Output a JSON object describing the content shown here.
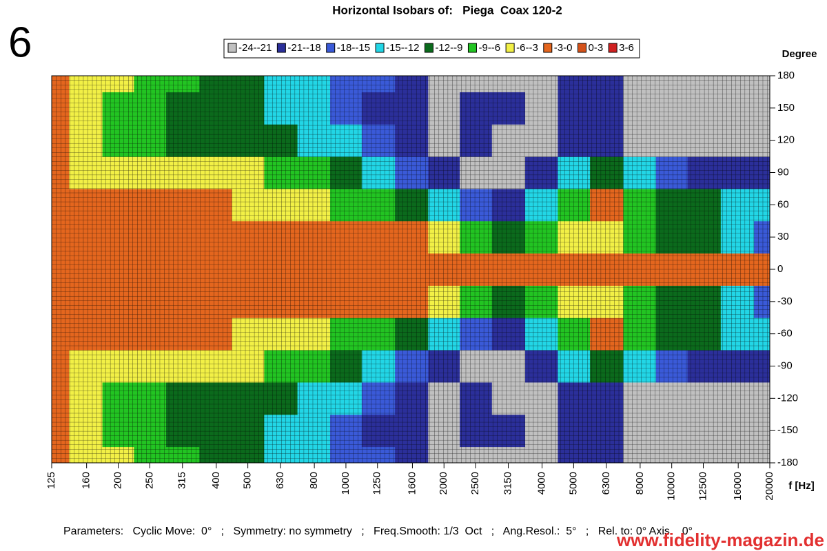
{
  "corner_label": "6",
  "chart_data": {
    "type": "contour",
    "title": "Horizontal Isobars of:   Piega  Coax 120-2",
    "x_label": "f [Hz]",
    "y_label": "Degree",
    "x_scale": "log",
    "grid": true,
    "x": [
      125,
      160,
      200,
      250,
      315,
      400,
      500,
      630,
      800,
      1000,
      1250,
      1600,
      2000,
      2500,
      3150,
      4000,
      5000,
      6300,
      8000,
      10000,
      12500,
      16000,
      20000
    ],
    "xlim": [
      125,
      20000
    ],
    "y": [
      -180,
      -150,
      -120,
      -90,
      -60,
      -30,
      0,
      30,
      60,
      90,
      120,
      150,
      180
    ],
    "ylim": [
      -180,
      180
    ],
    "levels": [
      {
        "label": "-24--21",
        "min": -24,
        "max": -21,
        "color": "#c0c0c0"
      },
      {
        "label": "-21--18",
        "min": -21,
        "max": -18,
        "color": "#2b2f9a"
      },
      {
        "label": "-18--15",
        "min": -18,
        "max": -15,
        "color": "#3a5ad8"
      },
      {
        "label": "-15--12",
        "min": -15,
        "max": -12,
        "color": "#22d6e6"
      },
      {
        "label": "-12--9",
        "min": -12,
        "max": -9,
        "color": "#0b6a1c"
      },
      {
        "label": "-9--6",
        "min": -9,
        "max": -6,
        "color": "#22c422"
      },
      {
        "label": "-6--3",
        "min": -6,
        "max": -3,
        "color": "#f2f046"
      },
      {
        "label": "-3-0",
        "min": -3,
        "max": 0,
        "color": "#e4661e"
      },
      {
        "label": "0-3",
        "min": 0,
        "max": 3,
        "color": "#d4521a"
      },
      {
        "label": "3-6",
        "min": 3,
        "max": 6,
        "color": "#d02020"
      }
    ],
    "z": [
      [
        -1,
        -4,
        -5,
        -7,
        -8,
        -10,
        -11,
        -14,
        -15,
        -17,
        -18,
        -19,
        -22,
        -22,
        -22,
        -22,
        -20,
        -21,
        -22,
        -22,
        -22,
        -22,
        -22
      ],
      [
        -1,
        -4,
        -7,
        -8,
        -10,
        -11,
        -11,
        -13,
        -15,
        -17,
        -19,
        -20,
        -22,
        -20,
        -20,
        -22,
        -19,
        -20,
        -22,
        -22,
        -22,
        -22,
        -22
      ],
      [
        -1,
        -4,
        -6.5,
        -8,
        -10,
        -10,
        -10,
        -11,
        -13,
        -15,
        -18,
        -20,
        -22,
        -20,
        -22,
        -22,
        -20,
        -19,
        -22,
        -22,
        -22,
        -22,
        -22
      ],
      [
        -1,
        -3.5,
        -4,
        -5,
        -5,
        -5,
        -6,
        -7,
        -8,
        -10,
        -13,
        -16,
        -20,
        -22,
        -22,
        -19,
        -14,
        -11,
        -13,
        -16,
        -19,
        -20,
        -20
      ],
      [
        -1,
        -2,
        -2,
        -2,
        -2,
        -2,
        -3.5,
        -4,
        -5,
        -7,
        -8,
        -10,
        -13,
        -17,
        -20,
        -13,
        -7,
        -2,
        -8,
        -11,
        -12,
        -13,
        -15
      ],
      [
        -1,
        -1,
        -1,
        -1,
        -1,
        -1,
        -1,
        -1,
        -1,
        -1,
        -1,
        -2,
        -4,
        -7,
        -10,
        -8,
        -5,
        -4,
        -8,
        -10,
        -12,
        -14,
        -17
      ],
      [
        -1,
        -1,
        -1,
        -1,
        -1,
        -1,
        -1,
        -1,
        -1,
        -1,
        -1,
        -1,
        -1,
        -1,
        -1,
        -1,
        -1,
        -1,
        -1,
        -1,
        -1,
        -1,
        -1
      ],
      [
        -1,
        -1,
        -1,
        -1,
        -1,
        -1,
        -1,
        -1,
        -1,
        -1,
        -1,
        -2,
        -4,
        -7,
        -10,
        -8,
        -5,
        -4,
        -8,
        -10,
        -12,
        -14,
        -17
      ],
      [
        -1,
        -2,
        -2,
        -2,
        -2,
        -2,
        -3.5,
        -4,
        -5,
        -7,
        -8,
        -10,
        -13,
        -17,
        -20,
        -13,
        -7,
        -2,
        -8,
        -11,
        -12,
        -13,
        -15
      ],
      [
        -1,
        -3.5,
        -4,
        -5,
        -5,
        -5,
        -6,
        -7,
        -8,
        -10,
        -13,
        -16,
        -20,
        -22,
        -22,
        -19,
        -14,
        -11,
        -13,
        -16,
        -19,
        -20,
        -20
      ],
      [
        -1,
        -4,
        -6.5,
        -8,
        -10,
        -10,
        -10,
        -11,
        -13,
        -15,
        -18,
        -20,
        -22,
        -20,
        -22,
        -22,
        -20,
        -19,
        -22,
        -22,
        -22,
        -22,
        -22
      ],
      [
        -1,
        -4,
        -7,
        -8,
        -10,
        -11,
        -11,
        -13,
        -15,
        -17,
        -19,
        -20,
        -22,
        -20,
        -20,
        -22,
        -19,
        -20,
        -22,
        -22,
        -22,
        -22,
        -22
      ],
      [
        -1,
        -4,
        -5,
        -7,
        -8,
        -10,
        -11,
        -14,
        -15,
        -17,
        -18,
        -19,
        -22,
        -22,
        -22,
        -22,
        -20,
        -21,
        -22,
        -22,
        -22,
        -22,
        -22
      ]
    ],
    "footer": "Parameters:   Cyclic Move:  0°   ;   Symmetry: no symmetry   ;   Freq.Smooth: 1/3  Oct   ;   Ang.Resol.:  5°   ;   Rel. to: 0° Axis    0°"
  },
  "watermark": "www.fidelity-magazin.de"
}
